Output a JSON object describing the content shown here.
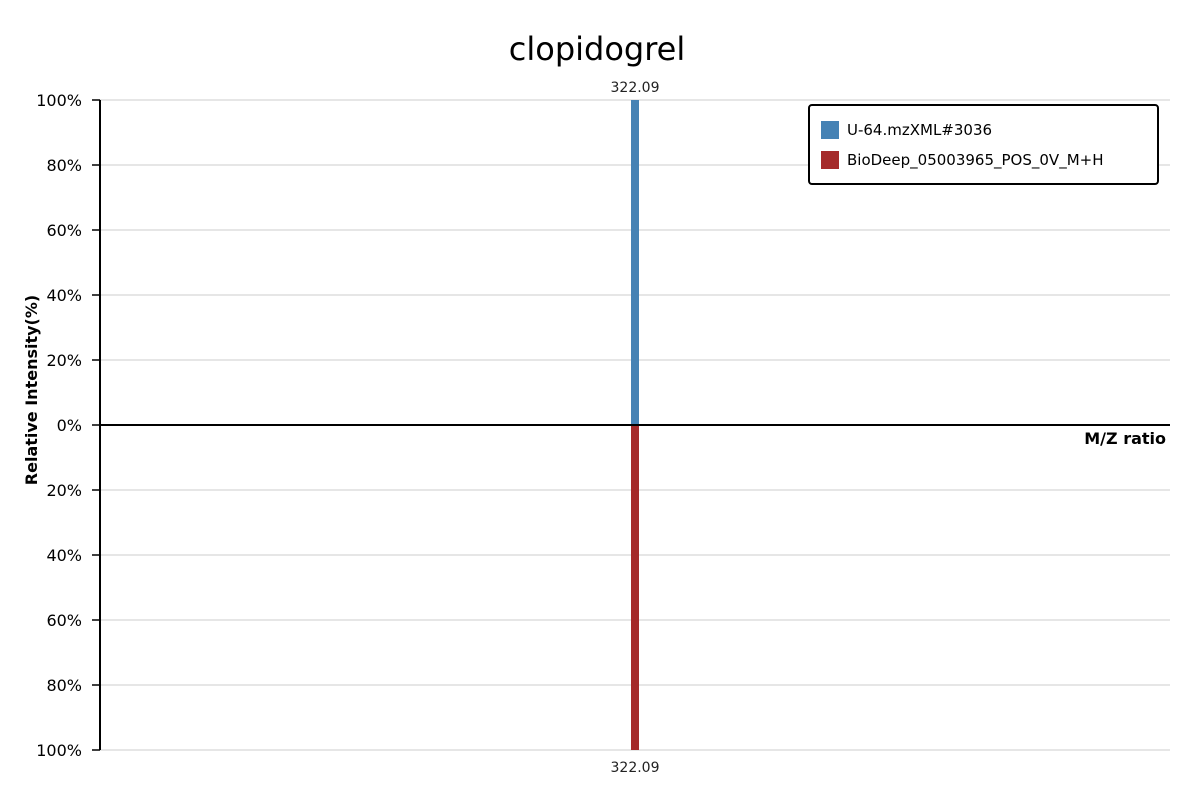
{
  "chart_data": {
    "type": "bar",
    "title": "clopidogrel",
    "xlabel": "M/Z ratio",
    "ylabel": "Relative Intensity(%)",
    "y_ticks_upper": [
      "100%",
      "80%",
      "60%",
      "40%",
      "20%",
      "0%"
    ],
    "y_ticks_lower": [
      "20%",
      "40%",
      "60%",
      "80%",
      "100%"
    ],
    "ylim": [
      -100,
      100
    ],
    "xlim": [
      0,
      644.18
    ],
    "grid": true,
    "legend_position": "top-right",
    "series": [
      {
        "name": "U-64.mzXML#3036",
        "color": "#4682b4",
        "direction": "up",
        "peaks": [
          {
            "mz": 322.09,
            "intensity": 100,
            "label": "322.09"
          }
        ]
      },
      {
        "name": "BioDeep_05003965_POS_0V_M+H",
        "color": "#a52a2a",
        "direction": "down",
        "peaks": [
          {
            "mz": 322.09,
            "intensity": 100,
            "label": "322.09"
          }
        ]
      }
    ]
  }
}
